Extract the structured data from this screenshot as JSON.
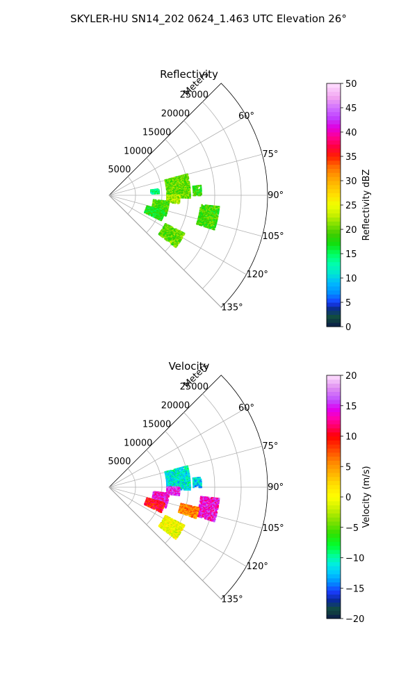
{
  "figure": {
    "suptitle": "SKYLER-HU  SN14_202  0624_1.463 UTC Elevation 26°"
  },
  "chart_data": [
    {
      "type": "polar-sector-heatmap",
      "title": "Reflectivity",
      "radial_label": "Meters",
      "radial_ticks": [
        "5000",
        "10000",
        "15000",
        "20000",
        "25000"
      ],
      "radial_tick_values": [
        5000,
        10000,
        15000,
        20000,
        25000
      ],
      "r_range": [
        0,
        30000
      ],
      "angle_ticks": [
        "60°",
        "75°",
        "90°",
        "105°",
        "120°",
        "135°"
      ],
      "angle_tick_values": [
        60,
        75,
        90,
        105,
        120,
        135
      ],
      "angle_range": [
        45,
        135
      ],
      "grid": true,
      "colorbar": {
        "label": "Reflectivity dBZ",
        "range": [
          0,
          50
        ],
        "ticks": [
          "0",
          "5",
          "10",
          "15",
          "20",
          "25",
          "30",
          "35",
          "40",
          "45",
          "50"
        ]
      },
      "echo_regions": [
        {
          "az": [
            75,
            92
          ],
          "r": [
            11000,
            15500
          ],
          "value": 20
        },
        {
          "az": [
            90,
            97
          ],
          "r": [
            11000,
            13500
          ],
          "value": 22
        },
        {
          "az": [
            96,
            110
          ],
          "r": [
            8500,
            11500
          ],
          "value": 19
        },
        {
          "az": [
            106,
            116
          ],
          "r": [
            7500,
            11000
          ],
          "value": 17
        },
        {
          "az": [
            117,
            128
          ],
          "r": [
            12000,
            16000
          ],
          "value": 20
        },
        {
          "az": [
            96,
            108
          ],
          "r": [
            17500,
            21000
          ],
          "value": 19
        },
        {
          "az": [
            84,
            90
          ],
          "r": [
            16000,
            17500
          ],
          "value": 18
        },
        {
          "az": [
            83,
            88
          ],
          "r": [
            8000,
            9500
          ],
          "value": 14
        }
      ]
    },
    {
      "type": "polar-sector-heatmap",
      "title": "Velocity",
      "radial_label": "Meters",
      "radial_ticks": [
        "5000",
        "10000",
        "15000",
        "20000",
        "25000"
      ],
      "radial_tick_values": [
        5000,
        10000,
        15000,
        20000,
        25000
      ],
      "r_range": [
        0,
        30000
      ],
      "angle_ticks": [
        "60°",
        "75°",
        "90°",
        "105°",
        "120°",
        "135°"
      ],
      "angle_tick_values": [
        60,
        75,
        90,
        105,
        120,
        135
      ],
      "angle_range": [
        45,
        135
      ],
      "grid": true,
      "colorbar": {
        "label": "Velocity (m/s)",
        "range": [
          -20,
          20
        ],
        "ticks": [
          "−20",
          "−15",
          "−10",
          "−5",
          "0",
          "5",
          "10",
          "15",
          "20"
        ]
      },
      "echo_regions": [
        {
          "az": [
            75,
            92
          ],
          "r": [
            11000,
            15500
          ],
          "value": -11
        },
        {
          "az": [
            90,
            97
          ],
          "r": [
            11000,
            13500
          ],
          "value": 15
        },
        {
          "az": [
            96,
            110
          ],
          "r": [
            8500,
            11500
          ],
          "value": 14
        },
        {
          "az": [
            106,
            116
          ],
          "r": [
            7500,
            11000
          ],
          "value": 10
        },
        {
          "az": [
            117,
            128
          ],
          "r": [
            12000,
            16000
          ],
          "value": 0
        },
        {
          "az": [
            96,
            108
          ],
          "r": [
            17500,
            21000
          ],
          "value": 14
        },
        {
          "az": [
            103,
            110
          ],
          "r": [
            14000,
            17500
          ],
          "value": 6
        },
        {
          "az": [
            84,
            90
          ],
          "r": [
            16000,
            17500
          ],
          "value": -12
        }
      ]
    }
  ]
}
